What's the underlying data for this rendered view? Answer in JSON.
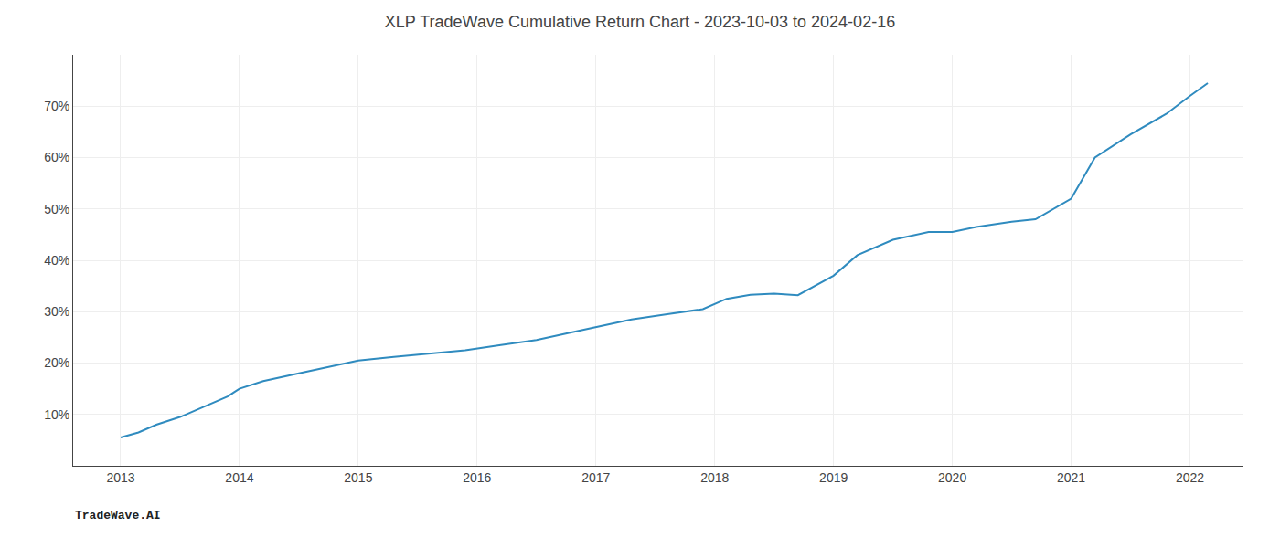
{
  "chart_data": {
    "type": "line",
    "title": "XLP TradeWave Cumulative Return Chart - 2023-10-03 to 2024-02-16",
    "annotations": [
      "TradeWave.AI"
    ],
    "x": [
      2013.0,
      2013.15,
      2013.3,
      2013.5,
      2013.7,
      2013.9,
      2014.0,
      2014.2,
      2014.5,
      2014.8,
      2015.0,
      2015.3,
      2015.6,
      2015.9,
      2016.2,
      2016.5,
      2016.8,
      2017.0,
      2017.3,
      2017.6,
      2017.9,
      2018.1,
      2018.3,
      2018.5,
      2018.7,
      2019.0,
      2019.2,
      2019.5,
      2019.8,
      2020.0,
      2020.2,
      2020.5,
      2020.7,
      2021.0,
      2021.2,
      2021.5,
      2021.8,
      2022.0,
      2022.15
    ],
    "values": [
      5.5,
      6.5,
      8.0,
      9.5,
      11.5,
      13.5,
      15.0,
      16.5,
      18.0,
      19.5,
      20.5,
      21.2,
      21.8,
      22.5,
      23.5,
      24.5,
      26.0,
      27.0,
      28.5,
      29.5,
      30.5,
      32.5,
      33.3,
      33.5,
      33.2,
      37.0,
      41.0,
      44.0,
      45.5,
      45.5,
      46.5,
      47.5,
      48.0,
      52.0,
      60.0,
      64.5,
      68.5,
      72.0,
      74.5
    ],
    "color": "#2f8bbf",
    "xlim": [
      2012.6,
      2022.45
    ],
    "xticks": [
      2013,
      2014,
      2015,
      2016,
      2017,
      2018,
      2019,
      2020,
      2021,
      2022
    ],
    "ylim": [
      0,
      80
    ],
    "yticks": [
      {
        "value": 10,
        "label": "10%"
      },
      {
        "value": 20,
        "label": "20%"
      },
      {
        "value": 30,
        "label": "30%"
      },
      {
        "value": 40,
        "label": "40%"
      },
      {
        "value": 50,
        "label": "50%"
      },
      {
        "value": 60,
        "label": "60%"
      },
      {
        "value": 70,
        "label": "70%"
      }
    ],
    "grid": true
  }
}
